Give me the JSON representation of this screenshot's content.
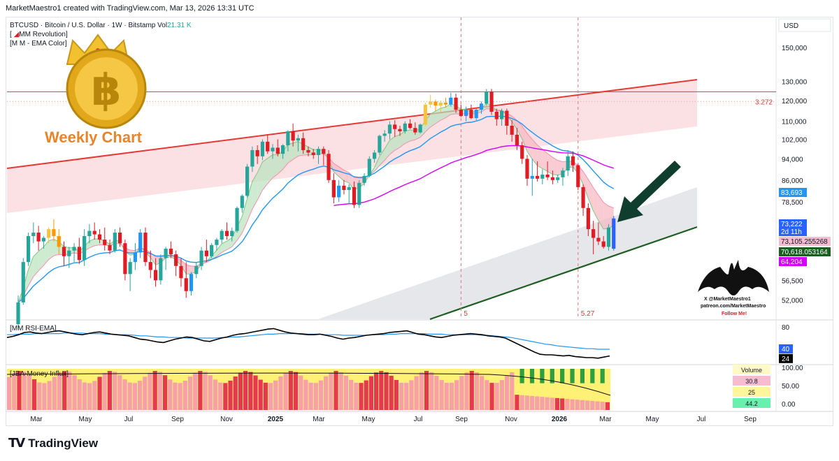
{
  "header": {
    "attribution": "MarketMaestro1 created with TradingView.com, Mar 13, 2026 13:31 UTC"
  },
  "legend": {
    "symbol_line": "BTCUSD · Bitcoin / U.S. Dollar · 1W · Bitstamp  Vol",
    "vol_value": "21.31 K",
    "indicator1": "MM Revolution",
    "indicator2": "M M - EMA Color",
    "rsi_label": "MM RSI-EMA",
    "money_label": "JBA-Money Influx"
  },
  "overlay": {
    "weekly_chart": "Weekly Chart",
    "signature_1": "X @MarketMaestro1",
    "signature_2": "patreon.com/MarketMaestro",
    "signature_3": "Follow Me!"
  },
  "branding": {
    "name": "TradingView"
  },
  "colors": {
    "bull": "#26a69a",
    "bear": "#e01b24",
    "blue": "#2962ff",
    "ema_blue": "#2196f3",
    "magenta": "#d500f9",
    "resistance": "#e53935",
    "support": "#1b5e20",
    "arrow": "#0f3d2e"
  },
  "chart_data": {
    "type": "candlestick",
    "symbol": "BTCUSD",
    "exchange": "Bitstamp",
    "timeframe": "1W",
    "currency": "USD",
    "price_axis_labels": [
      "150,000",
      "130,000",
      "120,000",
      "110,000",
      "102,000",
      "94,000",
      "86,000",
      "78,500",
      "56,500",
      "52,000"
    ],
    "price_axis_values": [
      150000,
      130000,
      120000,
      110000,
      102000,
      94000,
      86000,
      78500,
      56500,
      52000
    ],
    "price_range": [
      48000,
      170000
    ],
    "time_axis": [
      "Mar",
      "May",
      "Jul",
      "Sep",
      "Nov",
      "2025",
      "Mar",
      "May",
      "Jul",
      "Sep",
      "Nov",
      "2026",
      "Mar",
      "May",
      "Jul",
      "Sep"
    ],
    "candles": [
      [
        47000,
        53000,
        46000,
        51500
      ],
      [
        51500,
        62000,
        51000,
        61000
      ],
      [
        61000,
        69000,
        60000,
        68000
      ],
      [
        68000,
        72000,
        66000,
        69000
      ],
      [
        69000,
        71000,
        64000,
        66500
      ],
      [
        66500,
        68000,
        64500,
        67500
      ],
      [
        67500,
        70500,
        66000,
        70000
      ],
      [
        70000,
        73000,
        66500,
        68000
      ],
      [
        68000,
        70000,
        63000,
        65000
      ],
      [
        65000,
        66500,
        60000,
        62500
      ],
      [
        62500,
        65000,
        59500,
        64000
      ],
      [
        64000,
        66000,
        61000,
        65000
      ],
      [
        65000,
        67500,
        60500,
        61500
      ],
      [
        61500,
        70000,
        60000,
        68000
      ],
      [
        68000,
        71500,
        66000,
        69500
      ],
      [
        69500,
        72000,
        67000,
        68500
      ],
      [
        68500,
        70000,
        66000,
        67000
      ],
      [
        67000,
        70500,
        64000,
        65500
      ],
      [
        65500,
        67000,
        63000,
        64000
      ],
      [
        64000,
        70000,
        63500,
        69000
      ],
      [
        69000,
        70500,
        65000,
        66000
      ],
      [
        66000,
        67000,
        56500,
        58000
      ],
      [
        58000,
        62000,
        54000,
        61000
      ],
      [
        61000,
        66000,
        59000,
        63500
      ],
      [
        63500,
        70000,
        62000,
        69000
      ],
      [
        69000,
        70500,
        60000,
        61000
      ],
      [
        61000,
        64000,
        57000,
        59000
      ],
      [
        59000,
        62000,
        55000,
        56500
      ],
      [
        56500,
        63000,
        55500,
        62000
      ],
      [
        62000,
        65000,
        59000,
        64500
      ],
      [
        64500,
        66500,
        62000,
        63000
      ],
      [
        63000,
        64000,
        57500,
        60000
      ],
      [
        60000,
        62000,
        55000,
        57000
      ],
      [
        57000,
        61000,
        52500,
        54000
      ],
      [
        54000,
        58500,
        53000,
        58000
      ],
      [
        58000,
        61000,
        57000,
        60000
      ],
      [
        60000,
        65000,
        59000,
        64000
      ],
      [
        64000,
        67000,
        61000,
        62500
      ],
      [
        62500,
        66000,
        62000,
        65500
      ],
      [
        65500,
        67500,
        64000,
        67000
      ],
      [
        67000,
        70000,
        66000,
        69500
      ],
      [
        69500,
        72000,
        67000,
        68000
      ],
      [
        68000,
        70500,
        66500,
        69500
      ],
      [
        69500,
        77000,
        69000,
        76500
      ],
      [
        76500,
        81000,
        75000,
        80500
      ],
      [
        80500,
        92000,
        80000,
        91000
      ],
      [
        91000,
        99000,
        89000,
        97500
      ],
      [
        97500,
        99500,
        92000,
        95000
      ],
      [
        95000,
        102000,
        93500,
        101000
      ],
      [
        101000,
        104000,
        96000,
        97000
      ],
      [
        97000,
        100000,
        94000,
        98500
      ],
      [
        98500,
        102000,
        95000,
        96000
      ],
      [
        96000,
        100000,
        94000,
        99500
      ],
      [
        99500,
        106000,
        97000,
        105500
      ],
      [
        105500,
        109000,
        99000,
        101500
      ],
      [
        101500,
        104000,
        97000,
        102500
      ],
      [
        102500,
        105000,
        96000,
        97500
      ],
      [
        97500,
        99000,
        95000,
        96500
      ],
      [
        96500,
        98000,
        94000,
        95500
      ],
      [
        95500,
        99000,
        92000,
        98000
      ],
      [
        98000,
        99000,
        91500,
        96000
      ],
      [
        96000,
        97500,
        85000,
        86000
      ],
      [
        86000,
        88500,
        78000,
        80000
      ],
      [
        80000,
        86000,
        78500,
        84000
      ],
      [
        84000,
        86000,
        81000,
        82500
      ],
      [
        82500,
        84500,
        78000,
        83500
      ],
      [
        83500,
        85500,
        76500,
        77500
      ],
      [
        77500,
        86000,
        76500,
        85000
      ],
      [
        85000,
        88500,
        84000,
        87500
      ],
      [
        87500,
        95000,
        87000,
        94000
      ],
      [
        94000,
        97500,
        92500,
        96500
      ],
      [
        96500,
        104000,
        95500,
        103500
      ],
      [
        103500,
        106000,
        101000,
        104500
      ],
      [
        104500,
        110000,
        102000,
        108500
      ],
      [
        108500,
        110500,
        103000,
        106500
      ],
      [
        106500,
        108000,
        103500,
        105500
      ],
      [
        105500,
        110000,
        104500,
        109000
      ],
      [
        109000,
        111000,
        106500,
        107000
      ],
      [
        107000,
        109500,
        104000,
        105000
      ],
      [
        105000,
        109000,
        104500,
        108500
      ],
      [
        108500,
        119000,
        108000,
        118000
      ],
      [
        118000,
        123000,
        116500,
        119500
      ],
      [
        119500,
        120500,
        115000,
        117500
      ],
      [
        117500,
        120000,
        114500,
        119000
      ],
      [
        119000,
        121500,
        116500,
        118000
      ],
      [
        118000,
        124000,
        117000,
        121500
      ],
      [
        121500,
        123500,
        114000,
        115500
      ],
      [
        115500,
        118000,
        112000,
        112500
      ],
      [
        112500,
        117000,
        110000,
        115500
      ],
      [
        115500,
        118000,
        111000,
        111500
      ],
      [
        111500,
        116000,
        110500,
        115500
      ],
      [
        115500,
        119500,
        113500,
        118500
      ],
      [
        118500,
        126000,
        117500,
        124500
      ],
      [
        124500,
        126000,
        113000,
        114500
      ],
      [
        114500,
        116000,
        108000,
        111000
      ],
      [
        111000,
        116000,
        108000,
        115000
      ],
      [
        115000,
        116000,
        104000,
        108000
      ],
      [
        108000,
        110500,
        101000,
        104000
      ],
      [
        104000,
        107000,
        97500,
        99500
      ],
      [
        99500,
        101000,
        92000,
        94000
      ],
      [
        94000,
        95500,
        84000,
        86500
      ],
      [
        86500,
        94000,
        80500,
        87500
      ],
      [
        87500,
        93000,
        85500,
        86500
      ],
      [
        86500,
        90000,
        84500,
        88000
      ],
      [
        88000,
        93000,
        86000,
        87000
      ],
      [
        87000,
        89500,
        84500,
        86000
      ],
      [
        86000,
        88000,
        85000,
        87000
      ],
      [
        87000,
        90500,
        84000,
        89500
      ],
      [
        89500,
        97500,
        87500,
        95000
      ],
      [
        95000,
        97000,
        89000,
        91500
      ],
      [
        91500,
        92000,
        82500,
        83500
      ],
      [
        83500,
        84500,
        74000,
        76500
      ],
      [
        76500,
        78000,
        68000,
        70000
      ],
      [
        70000,
        72500,
        63000,
        67500
      ],
      [
        67500,
        72000,
        65500,
        66500
      ],
      [
        66500,
        68000,
        64500,
        65000
      ],
      [
        65000,
        71500,
        64000,
        70500
      ],
      [
        64500,
        74000,
        64000,
        73222
      ]
    ],
    "special_candle_indices": [
      23,
      24,
      26,
      27,
      32,
      34,
      57,
      61,
      63,
      85,
      88,
      89,
      90,
      91,
      101,
      102,
      104,
      105,
      114,
      115
    ],
    "ema_fast_last": 73105.255268,
    "ema_mid_last": 83693,
    "ema_slow_last": 64204,
    "price_badges": [
      {
        "label": "83,693",
        "value": 83693,
        "color": "#2196f3"
      },
      {
        "label": "73,222",
        "value": 73222,
        "color": "#2962ff",
        "sub": "2d 11h"
      },
      {
        "label": "73,105.255268",
        "value": 73105,
        "color": "#f8bbd0",
        "dark_text": true
      },
      {
        "label": "70,618.053164",
        "value": 70618,
        "color": "#1b5e20"
      },
      {
        "label": "64,204",
        "value": 64204,
        "color": "#d500f9"
      }
    ],
    "resistance_level": {
      "value": 124500,
      "label": "3.272"
    },
    "vertical_markers": [
      {
        "label": "5",
        "candle": 87
      },
      {
        "label": "5.27",
        "candle": 110
      }
    ],
    "currency_label": "USD",
    "rsi": {
      "levels": [
        80,
        40,
        24
      ],
      "level_labels": [
        "80",
        "40",
        "24"
      ],
      "rsi_values": [
        61,
        63,
        66,
        70,
        71,
        69,
        68,
        70,
        72,
        73,
        71,
        69,
        67,
        66,
        68,
        70,
        71,
        69,
        67,
        66,
        65,
        64,
        61,
        58,
        57,
        55,
        53,
        52,
        55,
        58,
        60,
        62,
        61,
        58,
        55,
        54,
        57,
        60,
        62,
        65,
        67,
        68,
        70,
        72,
        74,
        76,
        77,
        74,
        71,
        69,
        68,
        67,
        66,
        66,
        67,
        65,
        63,
        60,
        58,
        60,
        61,
        63,
        65,
        66,
        67,
        68,
        70,
        71,
        72,
        73,
        70,
        67,
        66,
        64,
        62,
        61,
        63,
        65,
        66,
        67,
        68,
        67,
        66,
        64,
        63,
        62,
        60,
        55,
        50,
        45,
        40,
        35,
        31,
        30,
        30,
        29,
        28,
        29,
        27,
        26,
        25,
        25,
        24,
        26,
        28
      ],
      "ema_values": [
        66,
        66,
        67,
        67,
        67,
        68,
        68,
        68,
        68,
        68,
        69,
        69,
        69,
        69,
        68,
        68,
        68,
        67,
        67,
        66,
        66,
        66,
        65,
        64,
        64,
        63,
        62,
        62,
        61,
        61,
        61,
        60,
        60,
        60,
        60,
        60,
        60,
        61,
        61,
        62,
        62,
        63,
        64,
        65,
        66,
        67,
        67,
        68,
        68,
        68,
        68,
        68,
        67,
        67,
        67,
        66,
        66,
        66,
        65,
        65,
        65,
        65,
        65,
        66,
        66,
        66,
        67,
        67,
        68,
        68,
        68,
        68,
        68,
        67,
        67,
        67,
        66,
        66,
        66,
        66,
        66,
        66,
        65,
        65,
        64,
        63,
        62,
        61,
        59,
        57,
        55,
        53,
        51,
        49,
        48,
        46,
        45,
        44,
        43,
        42,
        41,
        41,
        40,
        40,
        40
      ]
    },
    "money_influx": {
      "scale_labels": [
        "100.00",
        "50.00",
        "0.00"
      ],
      "table_header": "Volume",
      "table_values": [
        "30.8",
        "25",
        "44.2"
      ],
      "table_colors": [
        "#f8bbd0",
        "#fff59d",
        "#69f0ae"
      ]
    }
  }
}
